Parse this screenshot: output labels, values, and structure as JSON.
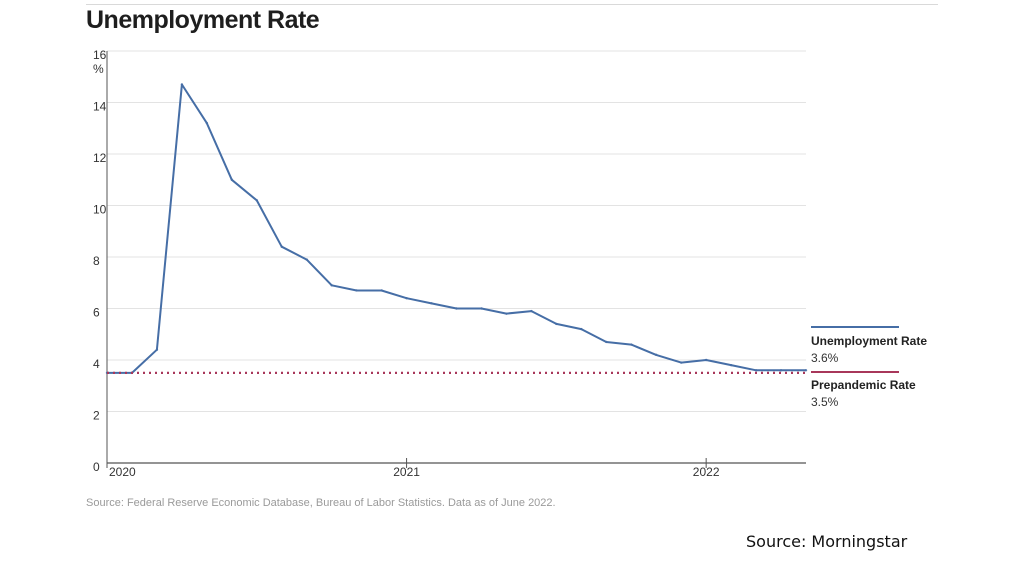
{
  "header": {
    "title": "Unemployment Rate"
  },
  "footer": {
    "source_note": "Source: Federal Reserve Economic Database, Bureau of Labor Statistics. Data as of June 2022.",
    "attribution": "Source: Morningstar"
  },
  "colors": {
    "series_line": "#466ea6",
    "reference_line": "#a8375a",
    "grid": "#e3e3e3",
    "axis": "#555555"
  },
  "chart_data": {
    "type": "line",
    "title": "Unemployment Rate",
    "ylabel": "%",
    "xlabel": "",
    "ylim": [
      0,
      16
    ],
    "yticks": [
      0,
      2,
      4,
      6,
      8,
      10,
      12,
      14,
      16
    ],
    "xlim": [
      2020.0,
      2022.3333
    ],
    "xticks": [
      {
        "value": 2020,
        "label": "2020"
      },
      {
        "value": 2021,
        "label": "2021"
      },
      {
        "value": 2022,
        "label": "2022"
      }
    ],
    "grid": true,
    "legend": "right",
    "series": [
      {
        "name": "Unemployment Rate",
        "value_label": "3.6%",
        "color": "#466ea6",
        "x": [
          2020.0,
          2020.0833,
          2020.1667,
          2020.25,
          2020.3333,
          2020.4167,
          2020.5,
          2020.5833,
          2020.6667,
          2020.75,
          2020.8333,
          2020.9167,
          2021.0,
          2021.0833,
          2021.1667,
          2021.25,
          2021.3333,
          2021.4167,
          2021.5,
          2021.5833,
          2021.6667,
          2021.75,
          2021.8333,
          2021.9167,
          2022.0,
          2022.0833,
          2022.1667,
          2022.25,
          2022.3333
        ],
        "y": [
          3.5,
          3.5,
          4.4,
          14.7,
          13.2,
          11.0,
          10.2,
          8.4,
          7.9,
          6.9,
          6.7,
          6.7,
          6.4,
          6.2,
          6.0,
          6.0,
          5.8,
          5.9,
          5.4,
          5.2,
          4.7,
          4.6,
          4.2,
          3.9,
          4.0,
          3.8,
          3.6,
          3.6,
          3.6
        ]
      },
      {
        "name": "Prepandemic Rate",
        "value_label": "3.5%",
        "color": "#a8375a",
        "style": "dotted",
        "x": [
          2020.0,
          2022.3333
        ],
        "y": [
          3.5,
          3.5
        ]
      }
    ]
  }
}
